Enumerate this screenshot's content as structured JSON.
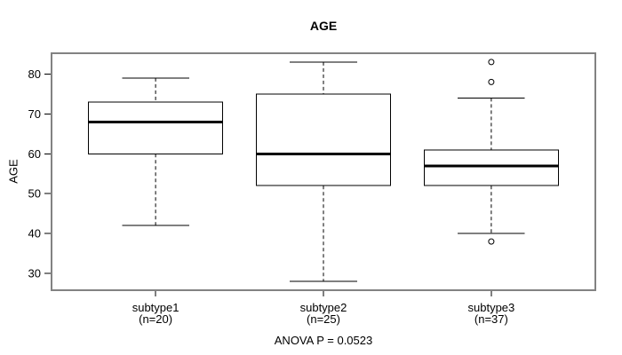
{
  "colors": {
    "background": "#ffffff",
    "plot_border": "#828282",
    "line": "#000000",
    "text": "#000000",
    "box_fill": "#ffffff"
  },
  "chart_data": {
    "type": "boxplot",
    "title": "AGE",
    "xlabel": "",
    "ylabel": "AGE",
    "annotation": "ANOVA P = 0.0523",
    "grid": false,
    "yticks": [
      30,
      40,
      50,
      60,
      70,
      80
    ],
    "ylim": [
      25.8,
      85.2
    ],
    "groups": [
      {
        "label": "subtype1",
        "sublabel": "(n=20)",
        "n": 20,
        "lower_whisker": 42,
        "q1": 60,
        "median": 68,
        "q3": 73,
        "upper_whisker": 79,
        "outliers": []
      },
      {
        "label": "subtype2",
        "sublabel": "(n=25)",
        "n": 25,
        "lower_whisker": 28,
        "q1": 52,
        "median": 60,
        "q3": 75,
        "upper_whisker": 83,
        "outliers": []
      },
      {
        "label": "subtype3",
        "sublabel": "(n=37)",
        "n": 37,
        "lower_whisker": 40,
        "q1": 52,
        "median": 57,
        "q3": 61,
        "upper_whisker": 74,
        "outliers": [
          83,
          78,
          38
        ]
      }
    ]
  }
}
